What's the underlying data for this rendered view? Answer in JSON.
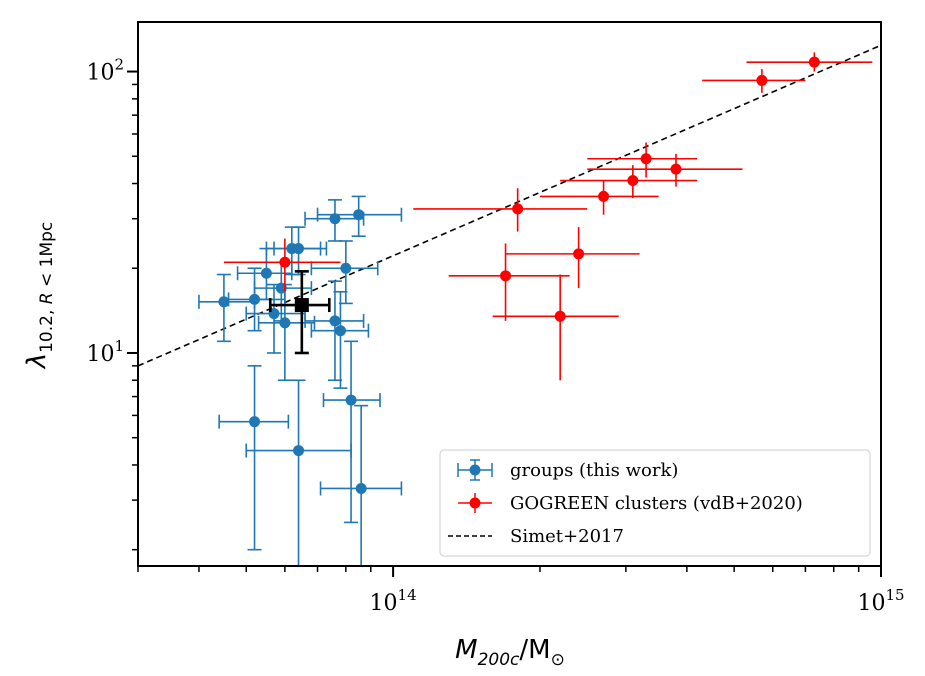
{
  "chart_data": {
    "type": "scatter",
    "x_scale": "log",
    "y_scale": "log",
    "xlim": [
      30000000000000,
      1000000000000000
    ],
    "ylim": [
      1.75,
      150
    ],
    "x_ticks": [
      {
        "value": 100000000000000,
        "base": "10",
        "exp": "14"
      },
      {
        "value": 1000000000000000,
        "base": "10",
        "exp": "15"
      }
    ],
    "y_ticks": [
      {
        "value": 10,
        "base": "10",
        "exp": "1"
      },
      {
        "value": 100,
        "base": "10",
        "exp": "2"
      }
    ],
    "xlabel": {
      "var": "M",
      "sub": "200c",
      "unit": "/M",
      "unit_sub": "⊙"
    },
    "ylabel": {
      "var": "λ",
      "sub_num": "10.2, ",
      "sub_r": "R",
      "sub_rest": " < 1Mpc"
    },
    "grid": false,
    "legend_position": "lower-right",
    "colors": {
      "groups": "#1f77b4",
      "clusters": "#ff0000",
      "mean": "#000000",
      "fit": "#000000"
    },
    "series": [
      {
        "name": "groups (this work)",
        "color": "#1f77b4",
        "marker": "circle",
        "points": [
          {
            "x": 45000000000000,
            "y": 15.2,
            "xlo": 40000000000000,
            "xhi": 52000000000000,
            "ylo": 11.0,
            "yhi": 19.0
          },
          {
            "x": 52000000000000,
            "y": 15.5,
            "xlo": 46000000000000,
            "xhi": 60000000000000,
            "ylo": 12.0,
            "yhi": 20.0
          },
          {
            "x": 55000000000000,
            "y": 19.2,
            "xlo": 48000000000000,
            "xhi": 62000000000000,
            "ylo": 15.5,
            "yhi": 23.5
          },
          {
            "x": 57000000000000,
            "y": 13.8,
            "xlo": 50000000000000,
            "xhi": 66000000000000,
            "ylo": 10.0,
            "yhi": 17.5
          },
          {
            "x": 59000000000000,
            "y": 17.0,
            "xlo": 52000000000000,
            "xhi": 68000000000000,
            "ylo": 13.0,
            "yhi": 21.0
          },
          {
            "x": 60000000000000,
            "y": 12.8,
            "xlo": 53000000000000,
            "xhi": 69000000000000,
            "ylo": 8.0,
            "yhi": 17.5
          },
          {
            "x": 62000000000000,
            "y": 23.5,
            "xlo": 55000000000000,
            "xhi": 71000000000000,
            "ylo": 19.0,
            "yhi": 28.0
          },
          {
            "x": 64000000000000,
            "y": 23.5,
            "xlo": 57000000000000,
            "xhi": 73000000000000,
            "ylo": 19.0,
            "yhi": 28.0
          },
          {
            "x": 52000000000000,
            "y": 5.7,
            "xlo": 44000000000000,
            "xhi": 61000000000000,
            "ylo": 2.0,
            "yhi": 9.0
          },
          {
            "x": 64000000000000,
            "y": 4.5,
            "xlo": 50000000000000,
            "xhi": 82000000000000,
            "ylo": 1.75,
            "yhi": 8.0
          },
          {
            "x": 76000000000000,
            "y": 13.0,
            "xlo": 66000000000000,
            "xhi": 87000000000000,
            "ylo": 8.0,
            "yhi": 18.0
          },
          {
            "x": 78000000000000,
            "y": 12.0,
            "xlo": 68000000000000,
            "xhi": 89000000000000,
            "ylo": 7.5,
            "yhi": 16.5
          },
          {
            "x": 76000000000000,
            "y": 30.0,
            "xlo": 66000000000000,
            "xhi": 87000000000000,
            "ylo": 25.0,
            "yhi": 35.0
          },
          {
            "x": 85000000000000,
            "y": 31.0,
            "xlo": 70000000000000,
            "xhi": 104000000000000,
            "ylo": 26.0,
            "yhi": 36.0
          },
          {
            "x": 80000000000000,
            "y": 20.0,
            "xlo": 68000000000000,
            "xhi": 93000000000000,
            "ylo": 15.0,
            "yhi": 25.0
          },
          {
            "x": 82000000000000,
            "y": 6.8,
            "xlo": 72000000000000,
            "xhi": 94000000000000,
            "ylo": 2.5,
            "yhi": 11.0
          },
          {
            "x": 86000000000000,
            "y": 3.3,
            "xlo": 71000000000000,
            "xhi": 104000000000000,
            "ylo": 1.75,
            "yhi": 6.5
          }
        ]
      },
      {
        "name": "GOGREEN clusters (vdB+2020)",
        "color": "#ff0000",
        "marker": "circle",
        "points": [
          {
            "x": 60000000000000,
            "y": 21.0,
            "xlo": 45000000000000,
            "xhi": 78000000000000,
            "ylo": 16.5,
            "yhi": 25.5
          },
          {
            "x": 170000000000000,
            "y": 18.8,
            "xlo": 130000000000000,
            "xhi": 230000000000000,
            "ylo": 13.0,
            "yhi": 24.5
          },
          {
            "x": 180000000000000,
            "y": 32.5,
            "xlo": 110000000000000,
            "xhi": 250000000000000,
            "ylo": 27.0,
            "yhi": 38.5
          },
          {
            "x": 220000000000000,
            "y": 13.5,
            "xlo": 160000000000000,
            "xhi": 290000000000000,
            "ylo": 8.0,
            "yhi": 19.0
          },
          {
            "x": 240000000000000,
            "y": 22.5,
            "xlo": 170000000000000,
            "xhi": 320000000000000,
            "ylo": 17.0,
            "yhi": 28.0
          },
          {
            "x": 270000000000000,
            "y": 36.0,
            "xlo": 200000000000000,
            "xhi": 350000000000000,
            "ylo": 31.0,
            "yhi": 41.0
          },
          {
            "x": 310000000000000,
            "y": 41.0,
            "xlo": 220000000000000,
            "xhi": 420000000000000,
            "ylo": 35.5,
            "yhi": 46.5
          },
          {
            "x": 330000000000000,
            "y": 49.0,
            "xlo": 250000000000000,
            "xhi": 420000000000000,
            "ylo": 42.0,
            "yhi": 56.0
          },
          {
            "x": 380000000000000,
            "y": 45.0,
            "xlo": 250000000000000,
            "xhi": 520000000000000,
            "ylo": 39.0,
            "yhi": 51.0
          },
          {
            "x": 570000000000000,
            "y": 93.0,
            "xlo": 430000000000000,
            "xhi": 700000000000000,
            "ylo": 84.0,
            "yhi": 102.0
          },
          {
            "x": 730000000000000,
            "y": 108.0,
            "xlo": 530000000000000,
            "xhi": 960000000000000,
            "ylo": 100.0,
            "yhi": 117.0
          }
        ]
      },
      {
        "name": "Simet+2017",
        "type": "line",
        "style": "dashed",
        "color": "#000000",
        "x": [
          30000000000000,
          1000000000000000
        ],
        "y": [
          9.0,
          124.0
        ]
      }
    ],
    "extra_marker": {
      "color": "#000000",
      "marker": "square",
      "x": 65000000000000,
      "y": 14.8,
      "xlo": 56000000000000,
      "xhi": 74000000000000,
      "ylo": 10.0,
      "yhi": 19.5
    }
  }
}
